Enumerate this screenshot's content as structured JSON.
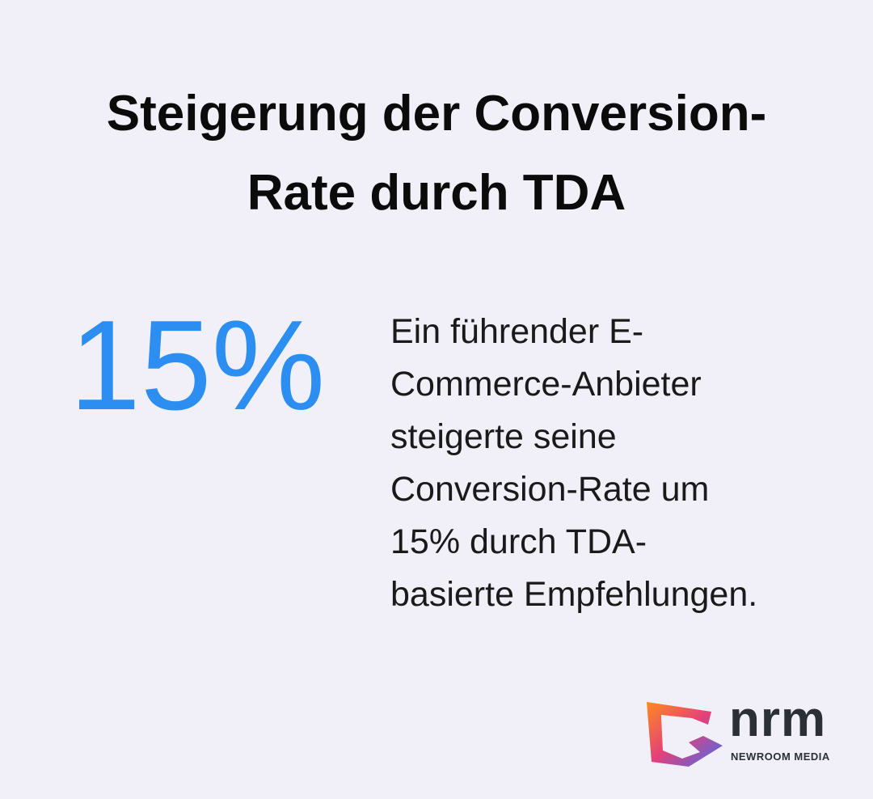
{
  "title_lines": [
    "Steigerung der Conversion-",
    "Rate durch TDA"
  ],
  "stat": "15%",
  "description_lines": [
    "Ein führender E-",
    "Commerce-Anbieter",
    "steigerte seine",
    "Conversion-Rate um",
    "15% durch TDA-",
    "basierte Empfehlungen."
  ],
  "logo": {
    "name": "nrm",
    "subtitle": "NEWROOM MEDIA"
  }
}
